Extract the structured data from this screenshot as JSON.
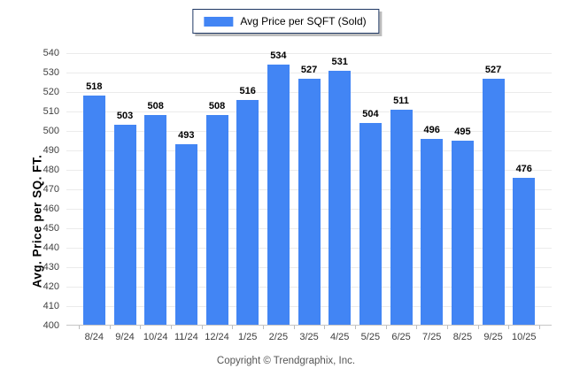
{
  "chart_data": {
    "type": "bar",
    "title": "",
    "legend": {
      "label": "Avg Price per SQFT (Sold)",
      "position": "top-center"
    },
    "categories": [
      "8/24",
      "9/24",
      "10/24",
      "11/24",
      "12/24",
      "1/25",
      "2/25",
      "3/25",
      "4/25",
      "5/25",
      "6/25",
      "7/25",
      "8/25",
      "9/25",
      "10/25"
    ],
    "values": [
      518,
      503,
      508,
      493,
      508,
      516,
      534,
      527,
      531,
      504,
      511,
      496,
      495,
      527,
      476
    ],
    "xlabel": "",
    "ylabel": "Avg. Price per SQ. FT.",
    "ylim": [
      400,
      540
    ],
    "ytick_step": 10,
    "y_ticks": [
      400,
      410,
      420,
      430,
      440,
      450,
      460,
      470,
      480,
      490,
      500,
      510,
      520,
      530,
      540
    ],
    "grid": "horizontal",
    "bar_color": "#4285f4"
  },
  "footer": {
    "text": "Copyright © Trendgraphix, Inc."
  },
  "colors": {
    "bar": "#4285f4",
    "legend_border": "#1f3864",
    "legend_shadow": "#bcbcbc",
    "gridline": "#ebebeb",
    "baseline": "#c6c6c6",
    "tick": "#bdbdbd",
    "axis_text": "#404040",
    "value_label": "#000000",
    "footer_text": "#555555"
  }
}
